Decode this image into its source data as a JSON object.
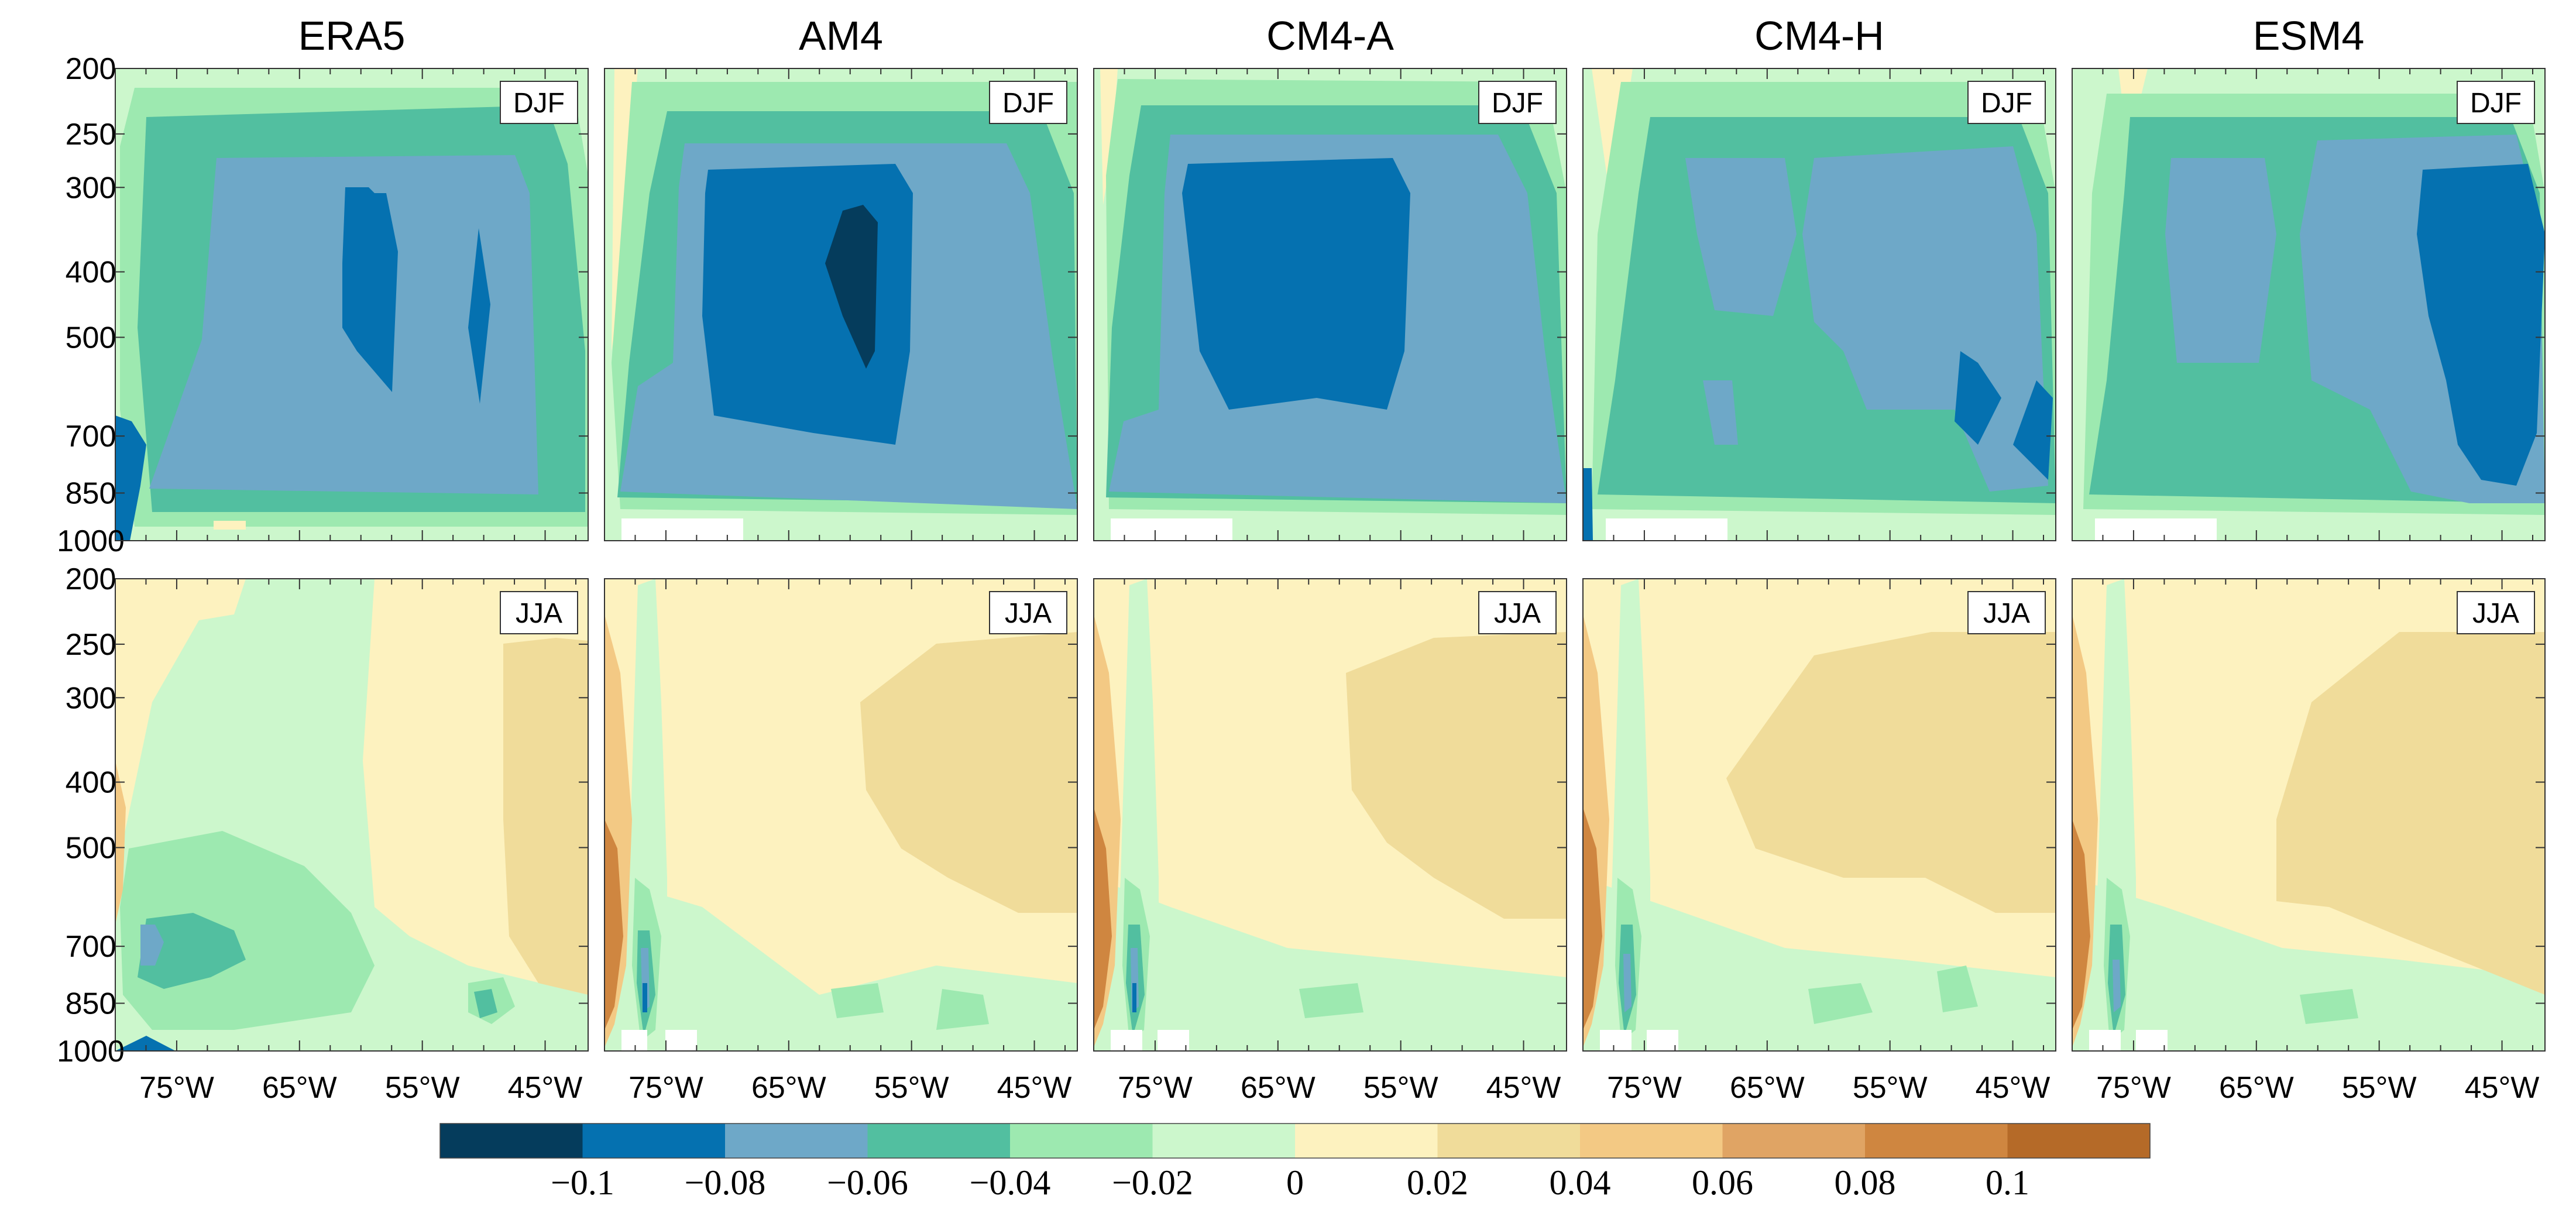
{
  "chart_data": {
    "type": "heatmap",
    "panels": [
      "ERA5",
      "AM4",
      "CM4-A",
      "CM4-H",
      "ESM4"
    ],
    "seasons": [
      "DJF",
      "JJA"
    ],
    "y_axis": {
      "scale": "log",
      "ticks": [
        "200",
        "250",
        "300",
        "400",
        "500",
        "700",
        "850",
        "1000"
      ],
      "values": [
        200,
        250,
        300,
        400,
        500,
        700,
        850,
        1000
      ],
      "range": [
        200,
        1000
      ]
    },
    "x_axis": {
      "ticks": [
        "75°W",
        "65°W",
        "55°W",
        "45°W"
      ],
      "values": [
        -75,
        -65,
        -55,
        -45
      ],
      "range": [
        -80,
        -41.5
      ]
    },
    "colorbar": {
      "colors": [
        "#053c5c",
        "#0571b0",
        "#6ea8c8",
        "#52bfa0",
        "#9de9b0",
        "#ccf7cc",
        "#fdf2bf",
        "#f0dc9a",
        "#f3c984",
        "#e0a464",
        "#cf8640",
        "#b56a28"
      ],
      "labels": [
        "−0.1",
        "−0.08",
        "−0.06",
        "−0.04",
        "−0.02",
        "0",
        "0.02",
        "0.04",
        "0.06",
        "0.08",
        "0.1"
      ],
      "bounds": [
        -0.1,
        -0.08,
        -0.06,
        -0.04,
        -0.02,
        0,
        0.02,
        0.04,
        0.06,
        0.08,
        0.1
      ]
    }
  }
}
